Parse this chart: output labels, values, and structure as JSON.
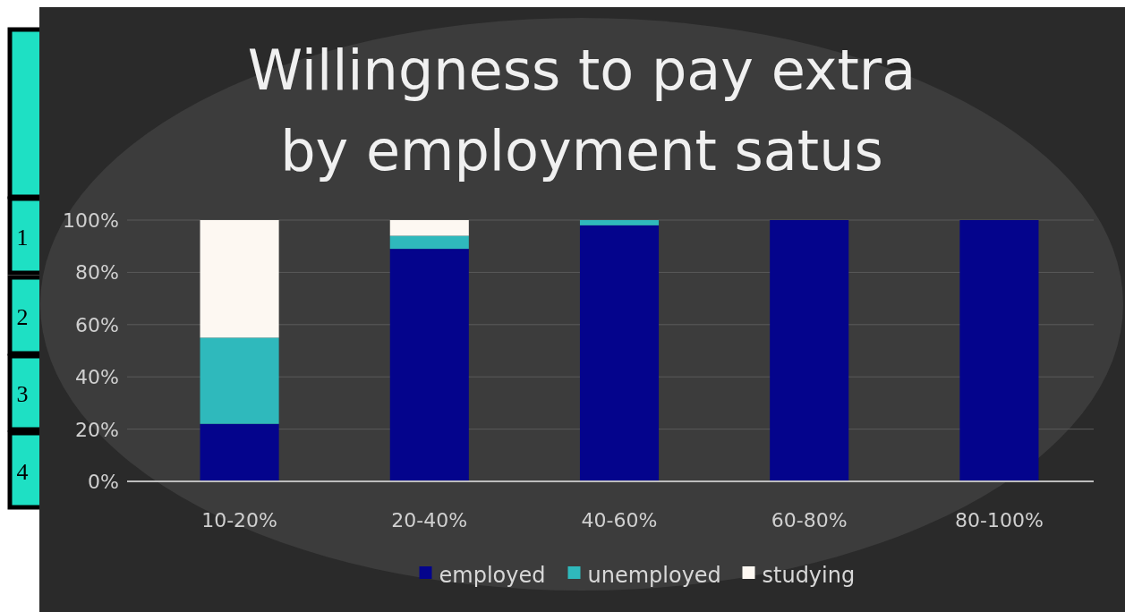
{
  "chart_data": {
    "type": "bar",
    "title": "Willingness to pay extra by employment satus",
    "categories": [
      "10-20%",
      "20-40%",
      "40-60%",
      "60-80%",
      "80-100%"
    ],
    "stacked": true,
    "series": [
      {
        "name": "employed",
        "color": "#04048c",
        "values": [
          22,
          89,
          98,
          100,
          100
        ]
      },
      {
        "name": "unemployed",
        "color": "#2fb9bc",
        "values": [
          33,
          5,
          2,
          0,
          0
        ]
      },
      {
        "name": "studying",
        "color": "#fdf8f2",
        "values": [
          45,
          6,
          0,
          0,
          0
        ]
      }
    ],
    "ylim": [
      0,
      100
    ],
    "yticks": [
      {
        "value": 0,
        "label": "0%"
      },
      {
        "value": 20,
        "label": "20%"
      },
      {
        "value": 40,
        "label": "40%"
      },
      {
        "value": 60,
        "label": "60%"
      },
      {
        "value": 80,
        "label": "80%"
      },
      {
        "value": 100,
        "label": "100%"
      }
    ],
    "grid": "y",
    "legend": "bottom",
    "annotations": [
      "1",
      "2",
      "3",
      "4"
    ]
  }
}
